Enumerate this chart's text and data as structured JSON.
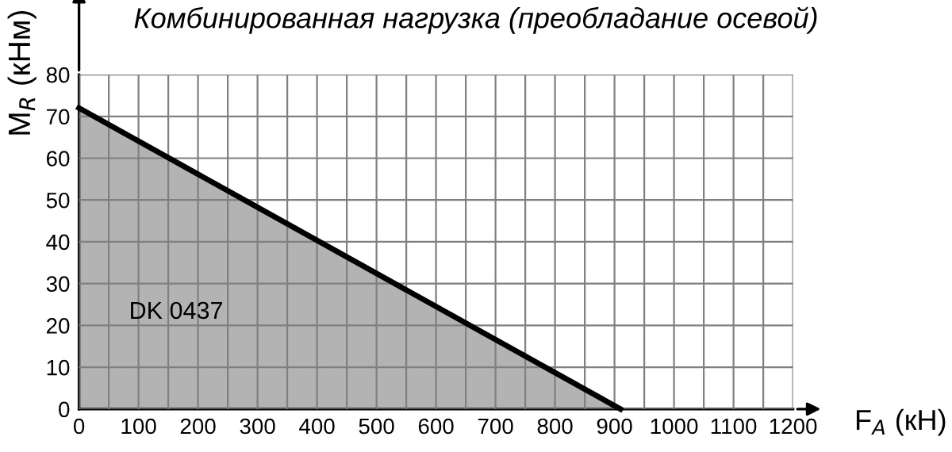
{
  "chart_data": {
    "type": "area",
    "title": "Комбинированная нагрузка (преобладание осевой)",
    "xlabel": "F$_{A}$ (кН)",
    "ylabel": "M$_{R}$ (кНм)",
    "x": [
      0,
      910
    ],
    "series": [
      {
        "name": "DK 0437",
        "color": "#b3b3b3",
        "values": [
          72,
          0
        ]
      }
    ],
    "xlim": [
      0,
      1200
    ],
    "ylim": [
      0,
      80
    ],
    "xticks": [
      0,
      {
        "value": 50,
        "label": null
      },
      100,
      {
        "value": 150,
        "label": null
      },
      200,
      {
        "value": 250,
        "label": null
      },
      300,
      {
        "value": 350,
        "label": null
      },
      400,
      {
        "value": 450,
        "label": null
      },
      500,
      {
        "value": 550,
        "label": null
      },
      600,
      {
        "value": 650,
        "label": null
      },
      700,
      {
        "value": 750,
        "label": null
      },
      800,
      {
        "value": 850,
        "label": null
      },
      900,
      {
        "value": 950,
        "label": null
      },
      1000,
      {
        "value": 1050,
        "label": null
      },
      1100,
      {
        "value": 1150,
        "label": null
      },
      1200
    ],
    "yticks": [
      0,
      10,
      20,
      30,
      40,
      50,
      60,
      70,
      80
    ],
    "grid": true,
    "legend": false
  }
}
